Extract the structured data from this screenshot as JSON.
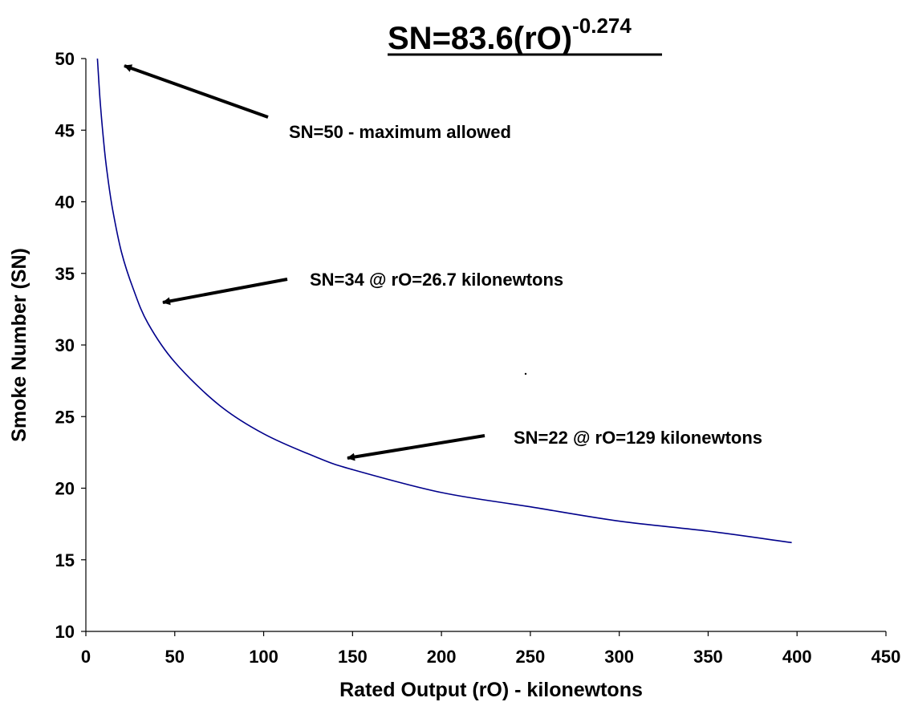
{
  "chart_data": {
    "type": "line",
    "formula": {
      "base": "SN=83.6(rO)",
      "exponent": "-0.274"
    },
    "xlabel": "Rated Output (rO) - kilonewtons",
    "ylabel": "Smoke Number (SN)",
    "xlim": [
      0,
      450
    ],
    "ylim": [
      10,
      50
    ],
    "x_ticks": [
      "0",
      "50",
      "100",
      "150",
      "200",
      "250",
      "300",
      "350",
      "400",
      "450"
    ],
    "y_ticks": [
      "10",
      "15",
      "20",
      "25",
      "30",
      "35",
      "40",
      "45",
      "50"
    ],
    "grid": false,
    "legend": "none",
    "series": [
      {
        "color": "#00008b",
        "x": [
          6.5,
          8,
          10,
          12,
          15,
          20,
          26.7,
          35,
          50,
          75,
          100,
          129,
          150,
          200,
          250,
          300,
          350,
          397
        ],
        "y": [
          50.0,
          47.1,
          44.2,
          42.0,
          39.5,
          36.5,
          33.9,
          31.5,
          28.8,
          25.8,
          23.8,
          22.2,
          21.3,
          19.7,
          18.7,
          17.7,
          17.0,
          16.2
        ]
      }
    ],
    "annotations": [
      {
        "text": "SN=50 - maximum allowed",
        "target": [
          20,
          49.5
        ]
      },
      {
        "text": "SN=34 @ rO=26.7 kilonewtons",
        "target": [
          40,
          32.8
        ]
      },
      {
        "text": "SN=22 @ rO=129 kilonewtons",
        "target": [
          145,
          21.9
        ]
      }
    ]
  }
}
